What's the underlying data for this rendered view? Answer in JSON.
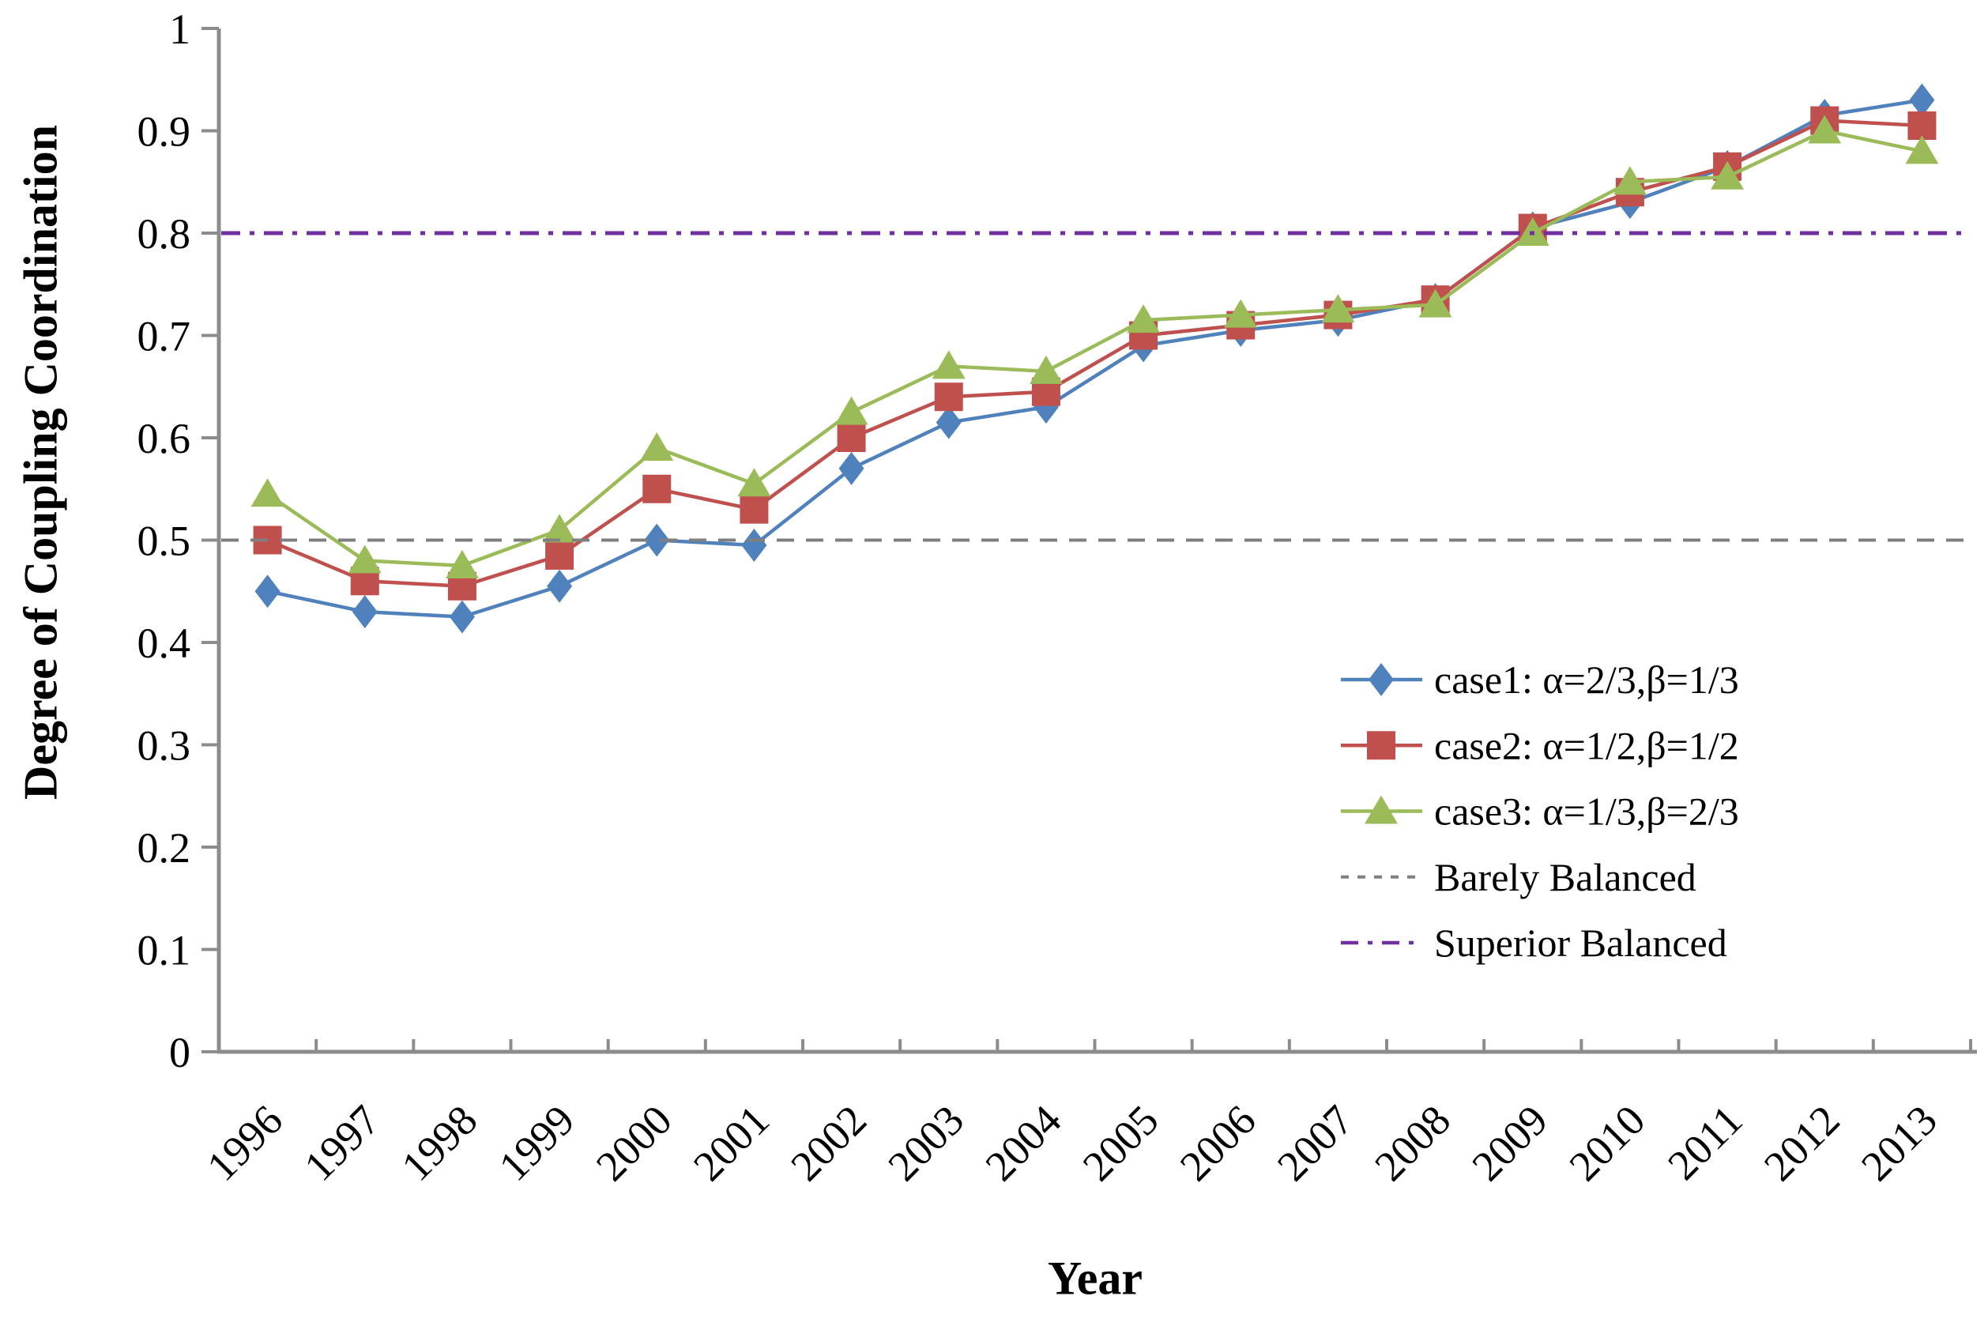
{
  "chart_data": {
    "type": "line",
    "title": "",
    "xlabel": "Year",
    "ylabel": "Degree of Coupling Coordination",
    "x_categories": [
      "1996",
      "1997",
      "1998",
      "1999",
      "2000",
      "2001",
      "2002",
      "2003",
      "2004",
      "2005",
      "2006",
      "2007",
      "2008",
      "2009",
      "2010",
      "2011",
      "2012",
      "2013"
    ],
    "y_tick_labels": [
      "0",
      "0.1",
      "0.2",
      "0.3",
      "0.4",
      "0.5",
      "0.6",
      "0.7",
      "0.8",
      "0.9",
      "1"
    ],
    "ylim": [
      0,
      1
    ],
    "grid": false,
    "legend_position": "inside-right",
    "axis_color": "#8c8c8c",
    "series": [
      {
        "name": "case1: α=2/3,β=1/3",
        "marker": "diamond",
        "color": "#4F81BD",
        "values": [
          0.45,
          0.43,
          0.425,
          0.455,
          0.5,
          0.495,
          0.57,
          0.615,
          0.63,
          0.69,
          0.705,
          0.715,
          0.735,
          0.805,
          0.83,
          0.865,
          0.915,
          0.93
        ]
      },
      {
        "name": "case2: α=1/2,β=1/2",
        "marker": "square",
        "color": "#C0504D",
        "values": [
          0.5,
          0.46,
          0.455,
          0.485,
          0.55,
          0.53,
          0.6,
          0.64,
          0.645,
          0.7,
          0.71,
          0.72,
          0.735,
          0.805,
          0.84,
          0.865,
          0.91,
          0.905
        ]
      },
      {
        "name": "case3: α=1/3,β=2/3",
        "marker": "triangle",
        "color": "#9BBB59",
        "values": [
          0.545,
          0.48,
          0.475,
          0.51,
          0.59,
          0.555,
          0.625,
          0.67,
          0.665,
          0.715,
          0.72,
          0.725,
          0.73,
          0.8,
          0.85,
          0.855,
          0.9,
          0.88
        ]
      }
    ],
    "reference_lines": [
      {
        "name": "Barely Balanced",
        "value": 0.5,
        "color": "#7F7F7F",
        "style": "dashed"
      },
      {
        "name": "Superior Balanced",
        "value": 0.8,
        "color": "#7030A0",
        "style": "dash-dot"
      }
    ]
  }
}
